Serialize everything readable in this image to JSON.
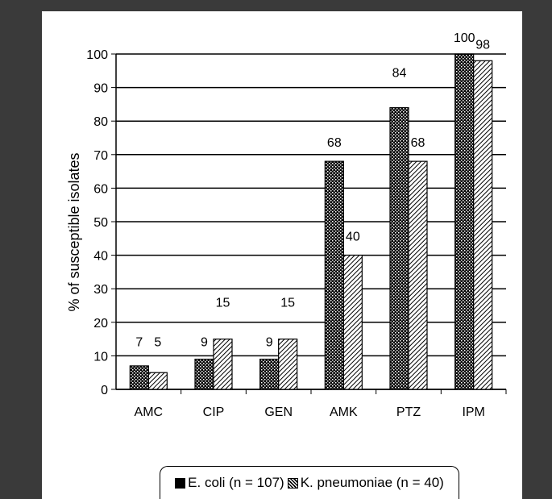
{
  "chart_data": {
    "type": "bar",
    "categories": [
      "AMC",
      "CIP",
      "GEN",
      "AMK",
      "PTZ",
      "IPM"
    ],
    "series": [
      {
        "name": "E. coli (n = 107)",
        "values": [
          7,
          9,
          9,
          68,
          84,
          100
        ]
      },
      {
        "name": "K. pneumoniae (n = 40)",
        "values": [
          5,
          15,
          15,
          40,
          68,
          98
        ]
      }
    ],
    "data_labels": [
      [
        "7",
        "9",
        "9",
        "68",
        "84",
        "100"
      ],
      [
        "5",
        "15",
        "15",
        "40",
        "68",
        "98"
      ]
    ],
    "ylabel": "% of susceptible isolates",
    "xlabel": "",
    "title": "",
    "ylim": [
      0,
      100
    ],
    "yticks": [
      0,
      10,
      20,
      30,
      40,
      50,
      60,
      70,
      80,
      90,
      100
    ],
    "grid": true,
    "legend_position": "bottom",
    "colors": {
      "series1": "#000000",
      "series2": "#ffffff",
      "grid": "#000000"
    }
  }
}
